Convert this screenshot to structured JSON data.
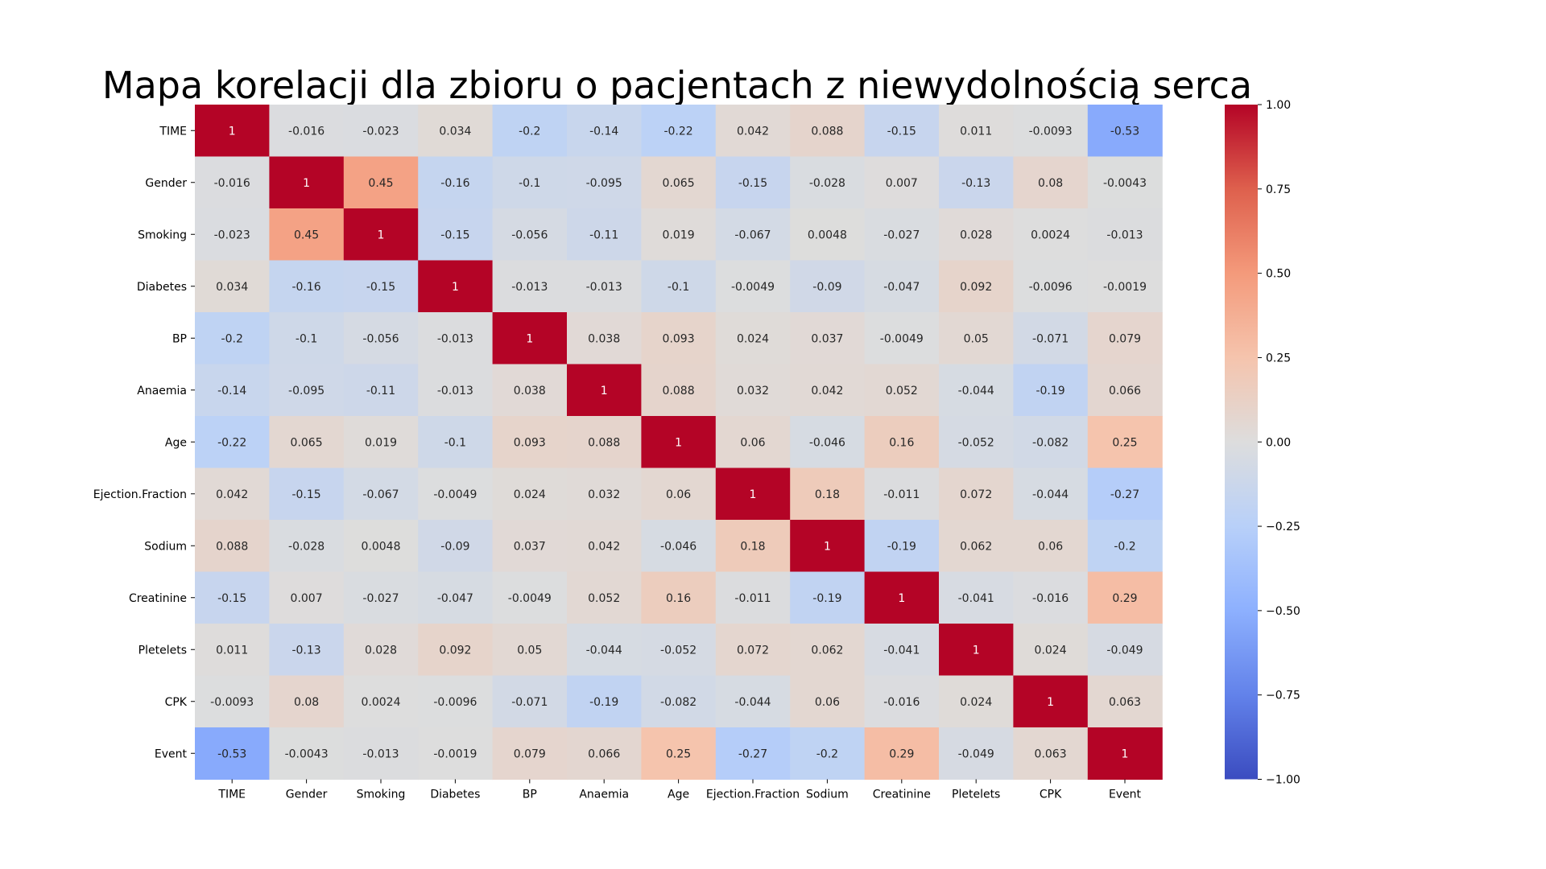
{
  "chart_data": {
    "type": "heatmap",
    "title": "Mapa korelacji dla zbioru o pacjentach z niewydolnością serca",
    "labels": [
      "TIME",
      "Gender",
      "Smoking",
      "Diabetes",
      "BP",
      "Anaemia",
      "Age",
      "Ejection.Fraction",
      "Sodium",
      "Creatinine",
      "Pletelets",
      "CPK",
      "Event"
    ],
    "cell_labels": [
      [
        "1",
        "-0.016",
        "-0.023",
        "0.034",
        "-0.2",
        "-0.14",
        "-0.22",
        "0.042",
        "0.088",
        "-0.15",
        "0.011",
        "-0.0093",
        "-0.53"
      ],
      [
        "-0.016",
        "1",
        "0.45",
        "-0.16",
        "-0.1",
        "-0.095",
        "0.065",
        "-0.15",
        "-0.028",
        "0.007",
        "-0.13",
        "0.08",
        "-0.0043"
      ],
      [
        "-0.023",
        "0.45",
        "1",
        "-0.15",
        "-0.056",
        "-0.11",
        "0.019",
        "-0.067",
        "0.0048",
        "-0.027",
        "0.028",
        "0.0024",
        "-0.013"
      ],
      [
        "0.034",
        "-0.16",
        "-0.15",
        "1",
        "-0.013",
        "-0.013",
        "-0.1",
        "-0.0049",
        "-0.09",
        "-0.047",
        "0.092",
        "-0.0096",
        "-0.0019"
      ],
      [
        "-0.2",
        "-0.1",
        "-0.056",
        "-0.013",
        "1",
        "0.038",
        "0.093",
        "0.024",
        "0.037",
        "-0.0049",
        "0.05",
        "-0.071",
        "0.079"
      ],
      [
        "-0.14",
        "-0.095",
        "-0.11",
        "-0.013",
        "0.038",
        "1",
        "0.088",
        "0.032",
        "0.042",
        "0.052",
        "-0.044",
        "-0.19",
        "0.066"
      ],
      [
        "-0.22",
        "0.065",
        "0.019",
        "-0.1",
        "0.093",
        "0.088",
        "1",
        "0.06",
        "-0.046",
        "0.16",
        "-0.052",
        "-0.082",
        "0.25"
      ],
      [
        "0.042",
        "-0.15",
        "-0.067",
        "-0.0049",
        "0.024",
        "0.032",
        "0.06",
        "1",
        "0.18",
        "-0.011",
        "0.072",
        "-0.044",
        "-0.27"
      ],
      [
        "0.088",
        "-0.028",
        "0.0048",
        "-0.09",
        "0.037",
        "0.042",
        "-0.046",
        "0.18",
        "1",
        "-0.19",
        "0.062",
        "0.06",
        "-0.2"
      ],
      [
        "-0.15",
        "0.007",
        "-0.027",
        "-0.047",
        "-0.0049",
        "0.052",
        "0.16",
        "-0.011",
        "-0.19",
        "1",
        "-0.041",
        "-0.016",
        "0.29"
      ],
      [
        "0.011",
        "-0.13",
        "0.028",
        "0.092",
        "0.05",
        "-0.044",
        "-0.052",
        "0.072",
        "0.062",
        "-0.041",
        "1",
        "0.024",
        "-0.049"
      ],
      [
        "-0.0093",
        "0.08",
        "0.0024",
        "-0.0096",
        "-0.071",
        "-0.19",
        "-0.082",
        "-0.044",
        "0.06",
        "-0.016",
        "0.024",
        "1",
        "0.063"
      ],
      [
        "-0.53",
        "-0.0043",
        "-0.013",
        "-0.0019",
        "0.079",
        "0.066",
        "0.25",
        "-0.27",
        "-0.2",
        "0.29",
        "-0.049",
        "0.063",
        "1"
      ]
    ],
    "colormap": "coolwarm",
    "vmin": -1.0,
    "vmax": 1.0,
    "colorbar_ticks": [
      "1.00",
      "0.75",
      "0.50",
      "0.25",
      "0.00",
      "−0.25",
      "−0.50",
      "−0.75",
      "−1.00"
    ],
    "colorbar_tick_values": [
      1.0,
      0.75,
      0.5,
      0.25,
      0.0,
      -0.25,
      -0.5,
      -0.75,
      -1.0
    ]
  }
}
